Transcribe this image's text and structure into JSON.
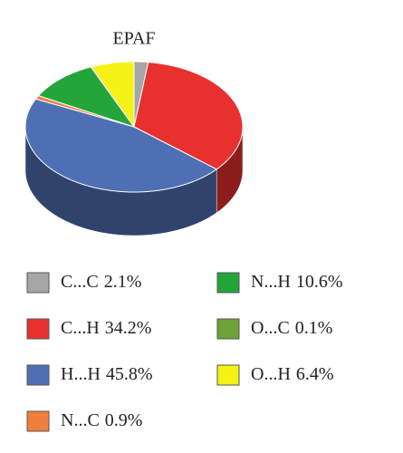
{
  "chart_data": {
    "type": "pie3d",
    "title": "EPAF",
    "categories": [
      "C...C",
      "C...H",
      "H...H",
      "N...C",
      "N...H",
      "O...C",
      "O...H"
    ],
    "values": [
      2.1,
      34.2,
      45.8,
      0.9,
      10.6,
      0.1,
      6.4
    ],
    "value_labels": [
      "2.1%",
      "34.2%",
      "45.8%",
      "0.9%",
      "10.6%",
      "0.1%",
      "6.4%"
    ],
    "colors": [
      "#a6a6a6",
      "#e8312f",
      "#4f6fb5",
      "#f07f3c",
      "#23a53a",
      "#6ea33b",
      "#f5f215"
    ]
  }
}
